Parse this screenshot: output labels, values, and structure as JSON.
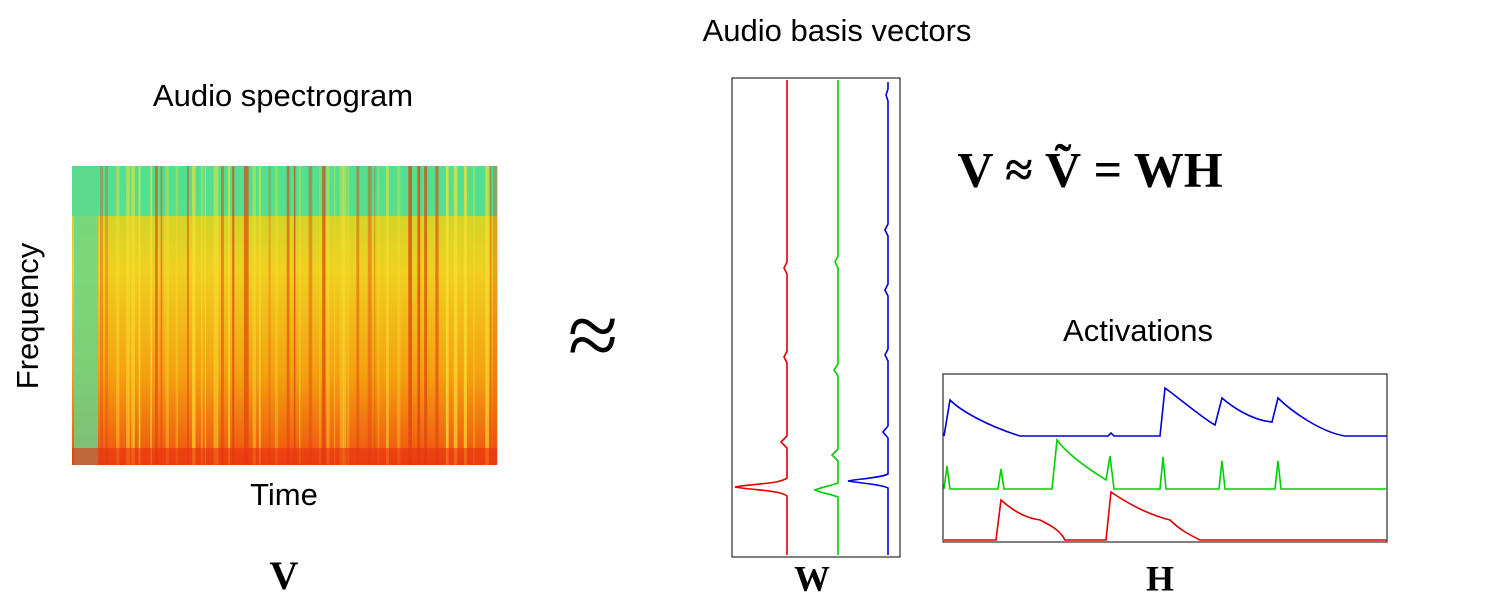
{
  "labels": {
    "basis_title": "Audio basis vectors",
    "spectrogram_title": "Audio spectrogram",
    "frequency_axis": "Frequency",
    "time_axis": "Time",
    "activations_title": "Activations",
    "approx_symbol": "≈",
    "equation": "V ≈ Ṽ = WH",
    "v_label": "V",
    "w_label": "W",
    "h_label": "H"
  }
}
